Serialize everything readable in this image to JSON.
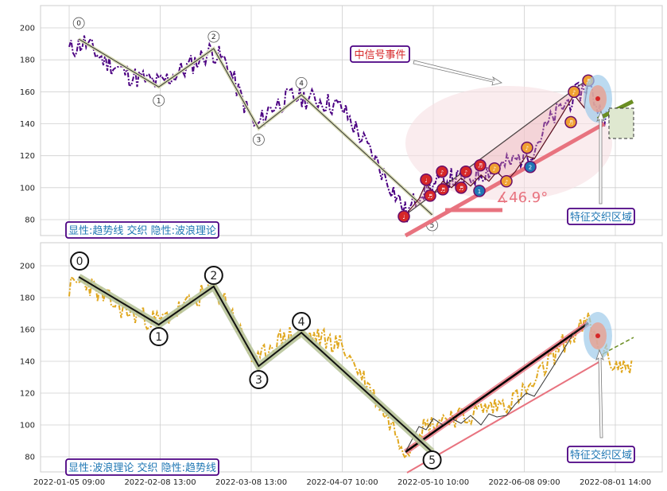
{
  "chart_data": [
    {
      "type": "line",
      "panel": "top",
      "legend_text": "显性:趋势线 交织 隐性:波浪理论",
      "annotation_signal": "中信号事件",
      "annotation_zone": "特征交织区域",
      "angle_label": "∡46.9°",
      "y_ticks": [
        80,
        100,
        120,
        140,
        160,
        180,
        200
      ],
      "ylim": [
        70,
        215
      ],
      "wave_points": [
        {
          "label": "0",
          "x": "2022-01-09",
          "y": 193
        },
        {
          "label": "1",
          "x": "2022-02-08",
          "y": 163
        },
        {
          "label": "2",
          "x": "2022-02-25",
          "y": 187
        },
        {
          "label": "3",
          "x": "2022-03-11",
          "y": 137
        },
        {
          "label": "4",
          "x": "2022-03-25",
          "y": 158
        },
        {
          "label": "5",
          "x": "2022-05-10",
          "y": 83
        }
      ],
      "price_series_color": "#4b0082",
      "trend_color": "#e8737f",
      "green_segment_color": "#6b8e23"
    },
    {
      "type": "line",
      "panel": "bottom",
      "legend_text": "显性:波浪理论 交织 隐性:趋势线",
      "annotation_zone": "特征交织区域",
      "y_ticks": [
        80,
        100,
        120,
        140,
        160,
        180,
        200
      ],
      "ylim": [
        70,
        215
      ],
      "wave_points": [
        {
          "label": "0",
          "x": "2022-01-09",
          "y": 193
        },
        {
          "label": "1",
          "x": "2022-02-08",
          "y": 163
        },
        {
          "label": "2",
          "x": "2022-02-25",
          "y": 187
        },
        {
          "label": "3",
          "x": "2022-03-11",
          "y": 137
        },
        {
          "label": "4",
          "x": "2022-03-25",
          "y": 158
        },
        {
          "label": "5",
          "x": "2022-05-10",
          "y": 83
        }
      ],
      "price_series_color": "#e0a820"
    }
  ],
  "x_ticks": [
    "2022-01-05 09:00",
    "2022-02-08 13:00",
    "2022-03-08 13:00",
    "2022-04-07 10:00",
    "2022-05-10 10:00",
    "2022-06-08 09:00",
    "2022-08-01 14:00"
  ]
}
